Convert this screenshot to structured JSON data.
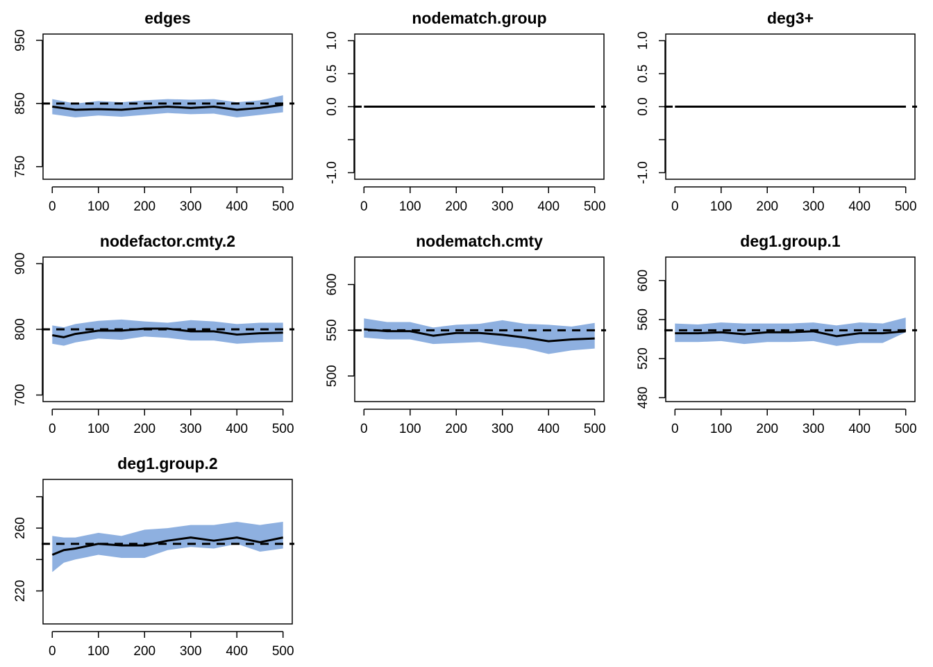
{
  "chart_data": [
    {
      "type": "area",
      "title": "edges",
      "x": [
        0,
        50,
        100,
        150,
        200,
        250,
        300,
        350,
        400,
        450,
        500
      ],
      "xticks": [
        0,
        100,
        200,
        300,
        400,
        500
      ],
      "xlim": [
        -20,
        520
      ],
      "ylim": [
        730,
        960
      ],
      "yticks": [
        750,
        850,
        950
      ],
      "yticklabels": [
        "750",
        "850",
        "950"
      ],
      "target": 850,
      "series": [
        {
          "values": [
            845,
            840,
            841,
            840,
            843,
            845,
            843,
            845,
            840,
            843,
            848
          ]
        },
        {
          "role": "band_upper",
          "values": [
            857,
            850,
            854,
            852,
            855,
            857,
            856,
            857,
            852,
            855,
            863
          ]
        },
        {
          "role": "band_lower",
          "values": [
            833,
            828,
            831,
            829,
            832,
            835,
            833,
            834,
            828,
            832,
            836
          ]
        }
      ]
    },
    {
      "type": "area",
      "title": "nodematch.group",
      "x": [
        0,
        50,
        100,
        150,
        200,
        250,
        300,
        350,
        400,
        450,
        500
      ],
      "xticks": [
        0,
        100,
        200,
        300,
        400,
        500
      ],
      "xlim": [
        -20,
        520
      ],
      "ylim": [
        -1.1,
        1.1
      ],
      "yticks": [
        -1.0,
        -0.5,
        0.0,
        0.5,
        1.0
      ],
      "yticklabels": [
        "-1.0",
        "",
        "0.0",
        "0.5",
        "1.0"
      ],
      "target": 0,
      "series": [
        {
          "values": [
            0,
            0,
            0,
            0,
            0,
            0,
            0,
            0,
            0,
            0,
            0
          ]
        },
        {
          "role": "band_upper",
          "values": [
            0,
            0,
            0,
            0,
            0,
            0,
            0,
            0,
            0,
            0,
            0
          ]
        },
        {
          "role": "band_lower",
          "values": [
            0,
            0,
            0,
            0,
            0,
            0,
            0,
            0,
            0,
            0,
            0
          ]
        }
      ]
    },
    {
      "type": "area",
      "title": "deg3+",
      "x": [
        0,
        50,
        100,
        150,
        200,
        250,
        300,
        350,
        400,
        450,
        500
      ],
      "xticks": [
        0,
        100,
        200,
        300,
        400,
        500
      ],
      "xlim": [
        -20,
        520
      ],
      "ylim": [
        -1.1,
        1.1
      ],
      "yticks": [
        -1.0,
        -0.5,
        0.0,
        0.5,
        1.0
      ],
      "yticklabels": [
        "-1.0",
        "",
        "0.0",
        "0.5",
        "1.0"
      ],
      "target": 0,
      "series": [
        {
          "values": [
            0,
            0,
            0,
            0,
            0,
            0,
            0,
            0,
            0,
            0,
            0
          ]
        },
        {
          "role": "band_upper",
          "values": [
            0,
            0,
            0,
            0,
            0,
            0,
            0,
            0,
            0,
            0,
            0
          ]
        },
        {
          "role": "band_lower",
          "values": [
            0,
            0,
            0,
            0,
            0,
            0,
            0,
            0,
            0,
            0,
            0
          ]
        }
      ]
    },
    {
      "type": "area",
      "title": "nodefactor.cmty.2",
      "x": [
        0,
        25,
        50,
        100,
        150,
        200,
        250,
        300,
        350,
        400,
        450,
        500
      ],
      "xticks": [
        0,
        100,
        200,
        300,
        400,
        500
      ],
      "xlim": [
        -20,
        520
      ],
      "ylim": [
        690,
        910
      ],
      "yticks": [
        700,
        800,
        900
      ],
      "yticklabels": [
        "700",
        "800",
        "900"
      ],
      "target": 800,
      "series": [
        {
          "values": [
            791,
            788,
            793,
            798,
            798,
            801,
            801,
            797,
            797,
            792,
            794,
            795
          ]
        },
        {
          "role": "band_upper",
          "values": [
            806,
            803,
            808,
            813,
            815,
            812,
            810,
            814,
            812,
            808,
            810,
            810
          ]
        },
        {
          "role": "band_lower",
          "values": [
            778,
            775,
            780,
            786,
            784,
            789,
            787,
            783,
            783,
            778,
            780,
            781
          ]
        }
      ]
    },
    {
      "type": "area",
      "title": "nodematch.cmty",
      "x": [
        0,
        50,
        100,
        150,
        200,
        250,
        300,
        350,
        400,
        450,
        500
      ],
      "xticks": [
        0,
        100,
        200,
        300,
        400,
        500
      ],
      "xlim": [
        -20,
        520
      ],
      "ylim": [
        472,
        630
      ],
      "yticks": [
        500,
        550,
        600
      ],
      "yticklabels": [
        "500",
        "550",
        "600"
      ],
      "target": 550,
      "series": [
        {
          "values": [
            551,
            549,
            549,
            544,
            547,
            547,
            545,
            542,
            538,
            540,
            541
          ]
        },
        {
          "role": "band_upper",
          "values": [
            563,
            559,
            559,
            553,
            556,
            557,
            561,
            557,
            556,
            554,
            558
          ]
        },
        {
          "role": "band_lower",
          "values": [
            542,
            540,
            540,
            535,
            536,
            537,
            533,
            530,
            524,
            528,
            530
          ]
        }
      ]
    },
    {
      "type": "area",
      "title": "deg1.group.1",
      "x": [
        0,
        50,
        100,
        150,
        200,
        250,
        300,
        350,
        400,
        450,
        500
      ],
      "xticks": [
        0,
        100,
        200,
        300,
        400,
        500
      ],
      "xlim": [
        -20,
        520
      ],
      "ylim": [
        476,
        624
      ],
      "yticks": [
        480,
        520,
        560,
        600
      ],
      "yticklabels": [
        "480",
        "520",
        "560",
        "600"
      ],
      "target": 549,
      "series": [
        {
          "values": [
            546,
            546,
            547,
            545,
            547,
            547,
            548,
            543,
            546,
            546,
            548
          ]
        },
        {
          "role": "band_upper",
          "values": [
            556,
            555,
            557,
            556,
            556,
            556,
            557,
            554,
            557,
            556,
            562
          ]
        },
        {
          "role": "band_lower",
          "values": [
            537,
            537,
            538,
            535,
            537,
            537,
            538,
            533,
            536,
            536,
            547
          ]
        }
      ]
    },
    {
      "type": "area",
      "title": "deg1.group.2",
      "x": [
        0,
        25,
        50,
        100,
        150,
        200,
        250,
        300,
        350,
        400,
        450,
        500
      ],
      "xticks": [
        0,
        100,
        200,
        300,
        400,
        500
      ],
      "xlim": [
        -20,
        520
      ],
      "ylim": [
        199,
        291
      ],
      "yticks": [
        220,
        240,
        260,
        280
      ],
      "yticklabels": [
        "220",
        "",
        "260",
        ""
      ],
      "target": 250,
      "series": [
        {
          "values": [
            243,
            246,
            247,
            250,
            249,
            249,
            252,
            254,
            252,
            254,
            251,
            254
          ]
        },
        {
          "role": "band_upper",
          "values": [
            255,
            254,
            254,
            257,
            255,
            259,
            260,
            262,
            262,
            264,
            262,
            264
          ]
        },
        {
          "role": "band_lower",
          "values": [
            232,
            238,
            240,
            243,
            241,
            241,
            246,
            248,
            247,
            250,
            245,
            247
          ]
        }
      ]
    }
  ]
}
